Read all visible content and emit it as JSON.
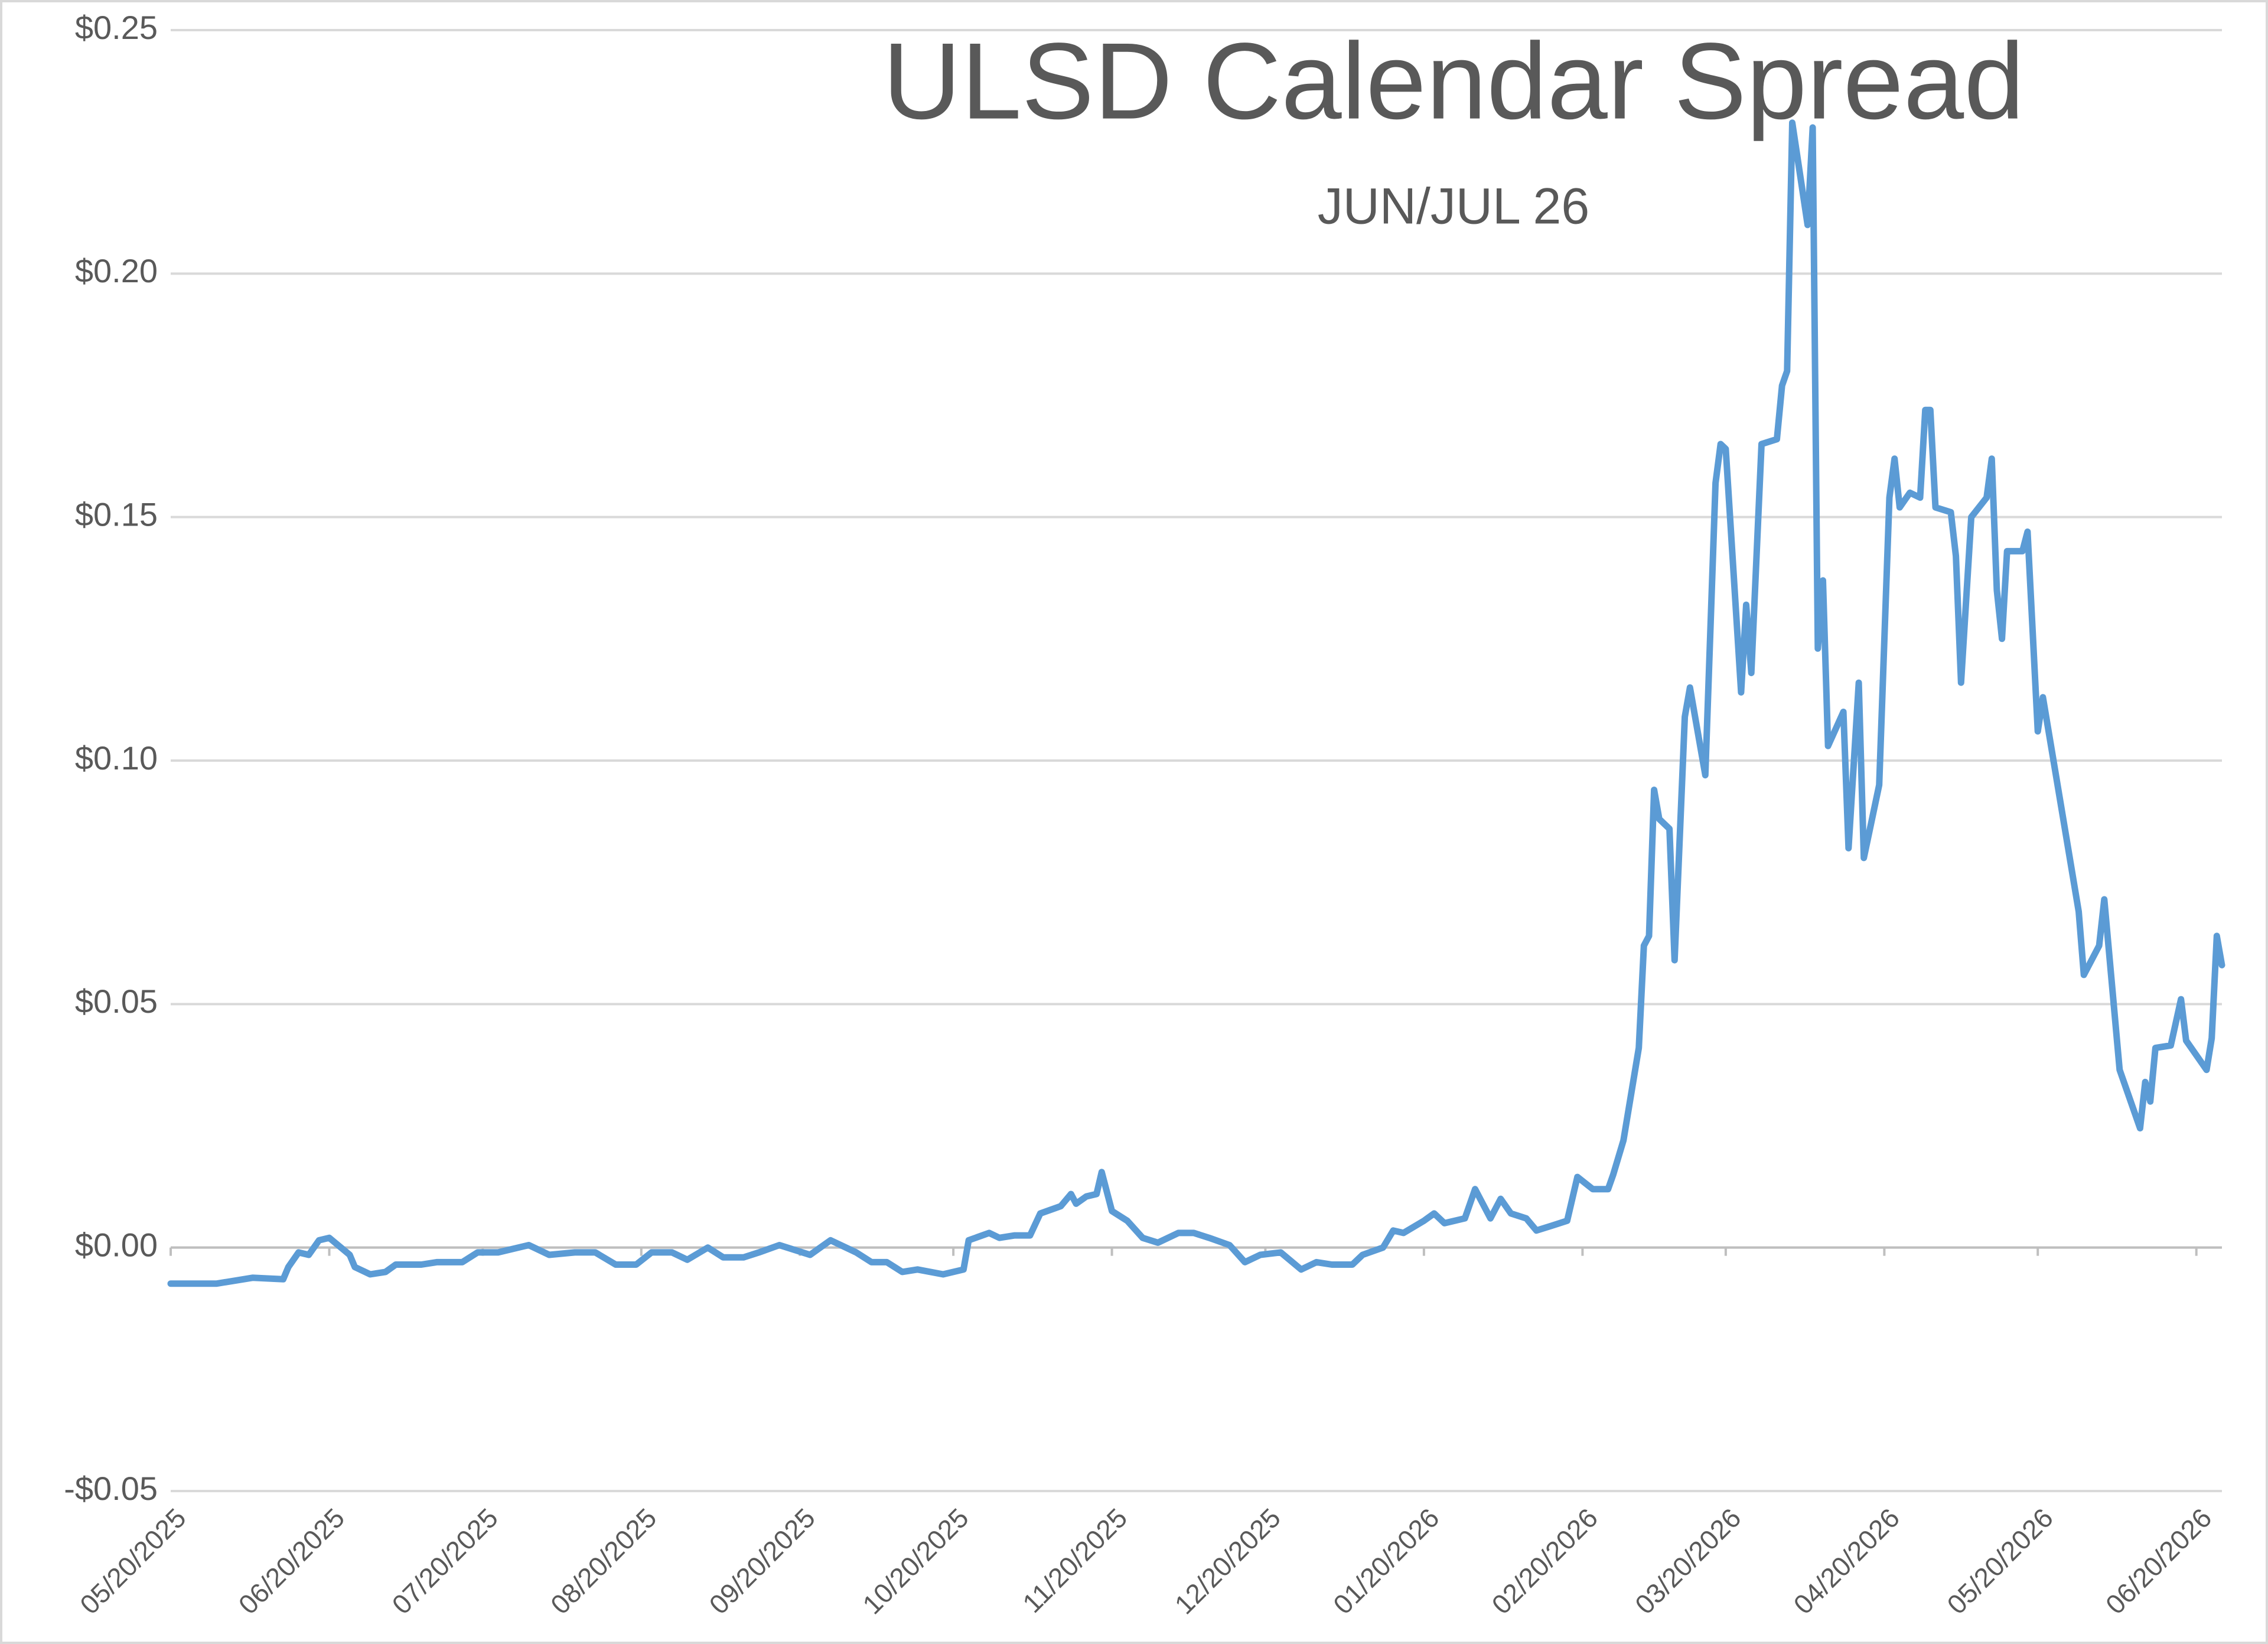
{
  "chart_data": {
    "type": "line",
    "title": "ULSD Calendar Spread",
    "subtitle": "JUN/JUL 26",
    "x": [
      "2025-05-20",
      "2025-05-29",
      "2025-06-05",
      "2025-06-11",
      "2025-06-12",
      "2025-06-14",
      "2025-06-16",
      "2025-06-18",
      "2025-06-20",
      "2025-06-24",
      "2025-06-25",
      "2025-06-28",
      "2025-07-01",
      "2025-07-03",
      "2025-07-08",
      "2025-07-11",
      "2025-07-16",
      "2025-07-19",
      "2025-07-23",
      "2025-07-29",
      "2025-08-02",
      "2025-08-07",
      "2025-08-11",
      "2025-08-15",
      "2025-08-19",
      "2025-08-22",
      "2025-08-26",
      "2025-08-29",
      "2025-09-02",
      "2025-09-05",
      "2025-09-09",
      "2025-09-12",
      "2025-09-16",
      "2025-09-22",
      "2025-09-26",
      "2025-10-01",
      "2025-10-04",
      "2025-10-07",
      "2025-10-10",
      "2025-10-13",
      "2025-10-18",
      "2025-10-22",
      "2025-10-23",
      "2025-10-27",
      "2025-10-29",
      "2025-11-01",
      "2025-11-04",
      "2025-11-06",
      "2025-11-10",
      "2025-11-12",
      "2025-11-13",
      "2025-11-15",
      "2025-11-17",
      "2025-11-18",
      "2025-11-20",
      "2025-11-23",
      "2025-11-26",
      "2025-11-29",
      "2025-12-03",
      "2025-12-06",
      "2025-12-09",
      "2025-12-13",
      "2025-12-16",
      "2025-12-19",
      "2025-12-23",
      "2025-12-27",
      "2025-12-30",
      "2026-01-02",
      "2026-01-06",
      "2026-01-08",
      "2026-01-12",
      "2026-01-14",
      "2026-01-16",
      "2026-01-20",
      "2026-01-22",
      "2026-01-24",
      "2026-01-28",
      "2026-01-30",
      "2026-02-02",
      "2026-02-04",
      "2026-02-06",
      "2026-02-09",
      "2026-02-11",
      "2026-02-14",
      "2026-02-17",
      "2026-02-19",
      "2026-02-22",
      "2026-02-25",
      "2026-02-26",
      "2026-02-28",
      "2026-03-03",
      "2026-03-04",
      "2026-03-05",
      "2026-03-06",
      "2026-03-07",
      "2026-03-09",
      "2026-03-10",
      "2026-03-12",
      "2026-03-13",
      "2026-03-16",
      "2026-03-18",
      "2026-03-19",
      "2026-03-20",
      "2026-03-23",
      "2026-03-24",
      "2026-03-25",
      "2026-03-27",
      "2026-03-30",
      "2026-03-31",
      "2026-04-01",
      "2026-04-02",
      "2026-04-05",
      "2026-04-06",
      "2026-04-07",
      "2026-04-08",
      "2026-04-09",
      "2026-04-12",
      "2026-04-13",
      "2026-04-15",
      "2026-04-16",
      "2026-04-19",
      "2026-04-21",
      "2026-04-22",
      "2026-04-23",
      "2026-04-25",
      "2026-04-27",
      "2026-04-28",
      "2026-04-29",
      "2026-04-30",
      "2026-05-03",
      "2026-05-04",
      "2026-05-05",
      "2026-05-07",
      "2026-05-10",
      "2026-05-11",
      "2026-05-12",
      "2026-05-13",
      "2026-05-14",
      "2026-05-17",
      "2026-05-18",
      "2026-05-20",
      "2026-05-21",
      "2026-05-28",
      "2026-05-29",
      "2026-06-01",
      "2026-06-02",
      "2026-06-05",
      "2026-06-09",
      "2026-06-10",
      "2026-06-11",
      "2026-06-12",
      "2026-06-15",
      "2026-06-17",
      "2026-06-18",
      "2026-06-22",
      "2026-06-23",
      "2026-06-24",
      "2026-06-25"
    ],
    "series": [
      {
        "name": "JUN/JUL 26",
        "color": "#5b9bd5",
        "values": [
          -0.0074,
          -0.0074,
          -0.0062,
          -0.0065,
          -0.004,
          -0.001,
          -0.0015,
          0.0015,
          0.002,
          -0.0015,
          -0.004,
          -0.0055,
          -0.005,
          -0.0035,
          -0.0035,
          -0.003,
          -0.003,
          -0.001,
          -0.001,
          0.0005,
          -0.0015,
          -0.001,
          -0.001,
          -0.0035,
          -0.0035,
          -0.001,
          -0.001,
          -0.0025,
          0,
          -0.002,
          -0.002,
          -0.001,
          0.0005,
          -0.0015,
          0.0015,
          -0.001,
          -0.003,
          -0.003,
          -0.005,
          -0.0045,
          -0.0055,
          -0.0045,
          0.0015,
          0.003,
          0.002,
          0.0025,
          0.0025,
          0.007,
          0.0085,
          0.011,
          0.009,
          0.0105,
          0.011,
          0.0155,
          0.0075,
          0.0055,
          0.002,
          0.001,
          0.003,
          0.003,
          0.002,
          0.0005,
          -0.003,
          -0.0015,
          -0.001,
          -0.0045,
          -0.003,
          -0.0035,
          -0.0035,
          -0.0015,
          0,
          0.0035,
          0.003,
          0.0055,
          0.007,
          0.005,
          0.006,
          0.012,
          0.006,
          0.01,
          0.007,
          0.006,
          0.0035,
          0.0045,
          0.0055,
          0.0145,
          0.012,
          0.012,
          0.015,
          0.022,
          0.041,
          0.062,
          0.064,
          0.094,
          0.088,
          0.086,
          0.059,
          0.109,
          0.115,
          0.097,
          0.157,
          0.165,
          0.164,
          0.114,
          0.132,
          0.118,
          0.165,
          0.166,
          0.177,
          0.18,
          0.231,
          0.21,
          0.23,
          0.123,
          0.137,
          0.103,
          0.11,
          0.082,
          0.116,
          0.08,
          0.095,
          0.154,
          0.162,
          0.152,
          0.155,
          0.154,
          0.172,
          0.172,
          0.152,
          0.151,
          0.142,
          0.116,
          0.15,
          0.154,
          0.162,
          0.135,
          0.125,
          0.143,
          0.143,
          0.147,
          0.106,
          0.113,
          0.069,
          0.056,
          0.062,
          0.0715,
          0.0365,
          0.0245,
          0.034,
          0.03,
          0.041,
          0.0415,
          0.051,
          0.0425,
          0.0365,
          0.043,
          0.064,
          0.058
        ]
      }
    ],
    "xlim": [
      "2025-05-20",
      "2026-06-25"
    ],
    "xticks": [
      {
        "value": "2025-05-20",
        "label": "05/20/2025"
      },
      {
        "value": "2025-06-20",
        "label": "06/20/2025"
      },
      {
        "value": "2025-07-20",
        "label": "07/20/2025"
      },
      {
        "value": "2025-08-20",
        "label": "08/20/2025"
      },
      {
        "value": "2025-09-20",
        "label": "09/20/2025"
      },
      {
        "value": "2025-10-20",
        "label": "10/20/2025"
      },
      {
        "value": "2025-11-20",
        "label": "11/20/2025"
      },
      {
        "value": "2025-12-20",
        "label": "12/20/2025"
      },
      {
        "value": "2026-01-20",
        "label": "01/20/2026"
      },
      {
        "value": "2026-02-20",
        "label": "02/20/2026"
      },
      {
        "value": "2026-03-20",
        "label": "03/20/2026"
      },
      {
        "value": "2026-04-20",
        "label": "04/20/2026"
      },
      {
        "value": "2026-05-20",
        "label": "05/20/2026"
      },
      {
        "value": "2026-06-20",
        "label": "06/20/2026"
      }
    ],
    "ylim": [
      -0.05,
      0.25
    ],
    "yticks": [
      {
        "value": -0.05,
        "label": "-$0.05"
      },
      {
        "value": 0,
        "label": "$0.00"
      },
      {
        "value": 0.05,
        "label": "$0.05"
      },
      {
        "value": 0.1,
        "label": "$0.10"
      },
      {
        "value": 0.15,
        "label": "$0.15"
      },
      {
        "value": 0.2,
        "label": "$0.20"
      },
      {
        "value": 0.25,
        "label": "$0.25"
      }
    ],
    "grid": true
  }
}
